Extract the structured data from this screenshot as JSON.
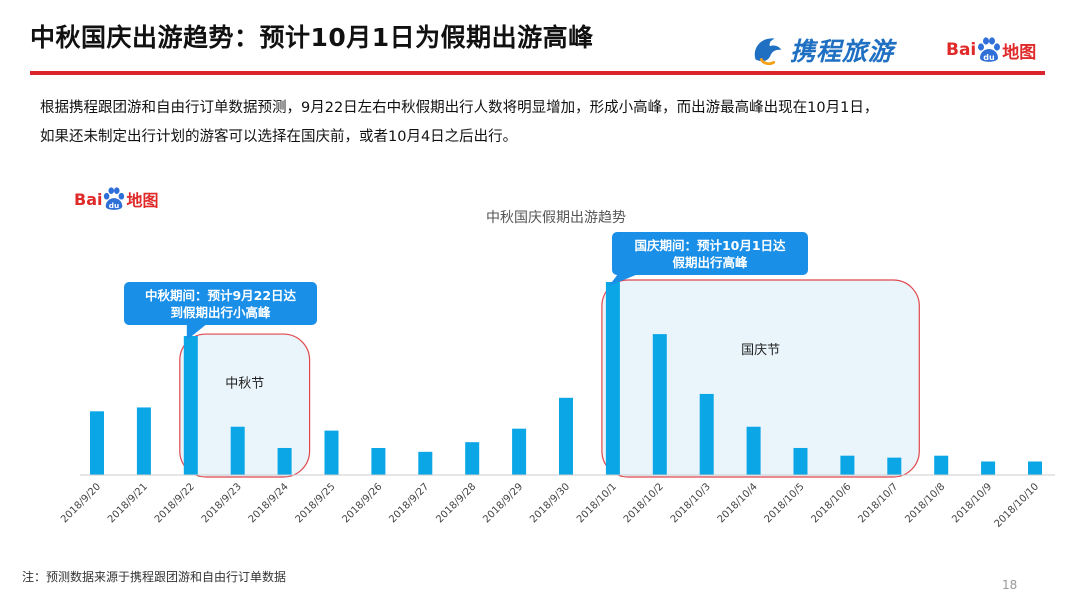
{
  "header": {
    "title": "中秋国庆出游趋势：预计10月1日为假期出游高峰",
    "brand_ctrip": "携程旅游",
    "brand_baidu_bai": "Bai",
    "brand_baidu_paw": "du",
    "brand_baidu_map": "地图"
  },
  "description": {
    "line1": "根据携程跟团游和自由行订单数据预测，9月22日左右中秋假期出行人数将明显增加，形成小高峰，而出游最高峰出现在10月1日，",
    "line2": "如果还未制定出行计划的游客可以选择在国庆前，或者10月4日之后出行。"
  },
  "chart_data": {
    "type": "bar",
    "title": "中秋国庆假期出游趋势",
    "categories": [
      "2018/9/20",
      "2018/9/21",
      "2018/9/22",
      "2018/9/23",
      "2018/9/24",
      "2018/9/25",
      "2018/9/26",
      "2018/9/27",
      "2018/9/28",
      "2018/9/29",
      "2018/9/30",
      "2018/10/1",
      "2018/10/2",
      "2018/10/3",
      "2018/10/4",
      "2018/10/5",
      "2018/10/6",
      "2018/10/7",
      "2018/10/8",
      "2018/10/9",
      "2018/10/10"
    ],
    "values": [
      33,
      35,
      72,
      25,
      14,
      23,
      14,
      12,
      17,
      24,
      40,
      100,
      73,
      42,
      25,
      14,
      10,
      9,
      10,
      7,
      7
    ],
    "bar_color": "#0aa6e6",
    "ylim": [
      0,
      100
    ],
    "regions": [
      {
        "label": "中秋节",
        "start": "2018/9/22",
        "end": "2018/9/24"
      },
      {
        "label": "国庆节",
        "start": "2018/10/1",
        "end": "2018/10/7"
      }
    ],
    "callouts": [
      {
        "line1": "中秋期间：预计9月22日达",
        "line2": "到假期出行小高峰",
        "target": "2018/9/22"
      },
      {
        "line1": "国庆期间：预计10月1日达",
        "line2": "假期出行高峰",
        "target": "2018/10/1"
      }
    ]
  },
  "footer": {
    "note": "注：预测数据来源于携程跟团游和自由行订单数据",
    "page_number": "18"
  }
}
